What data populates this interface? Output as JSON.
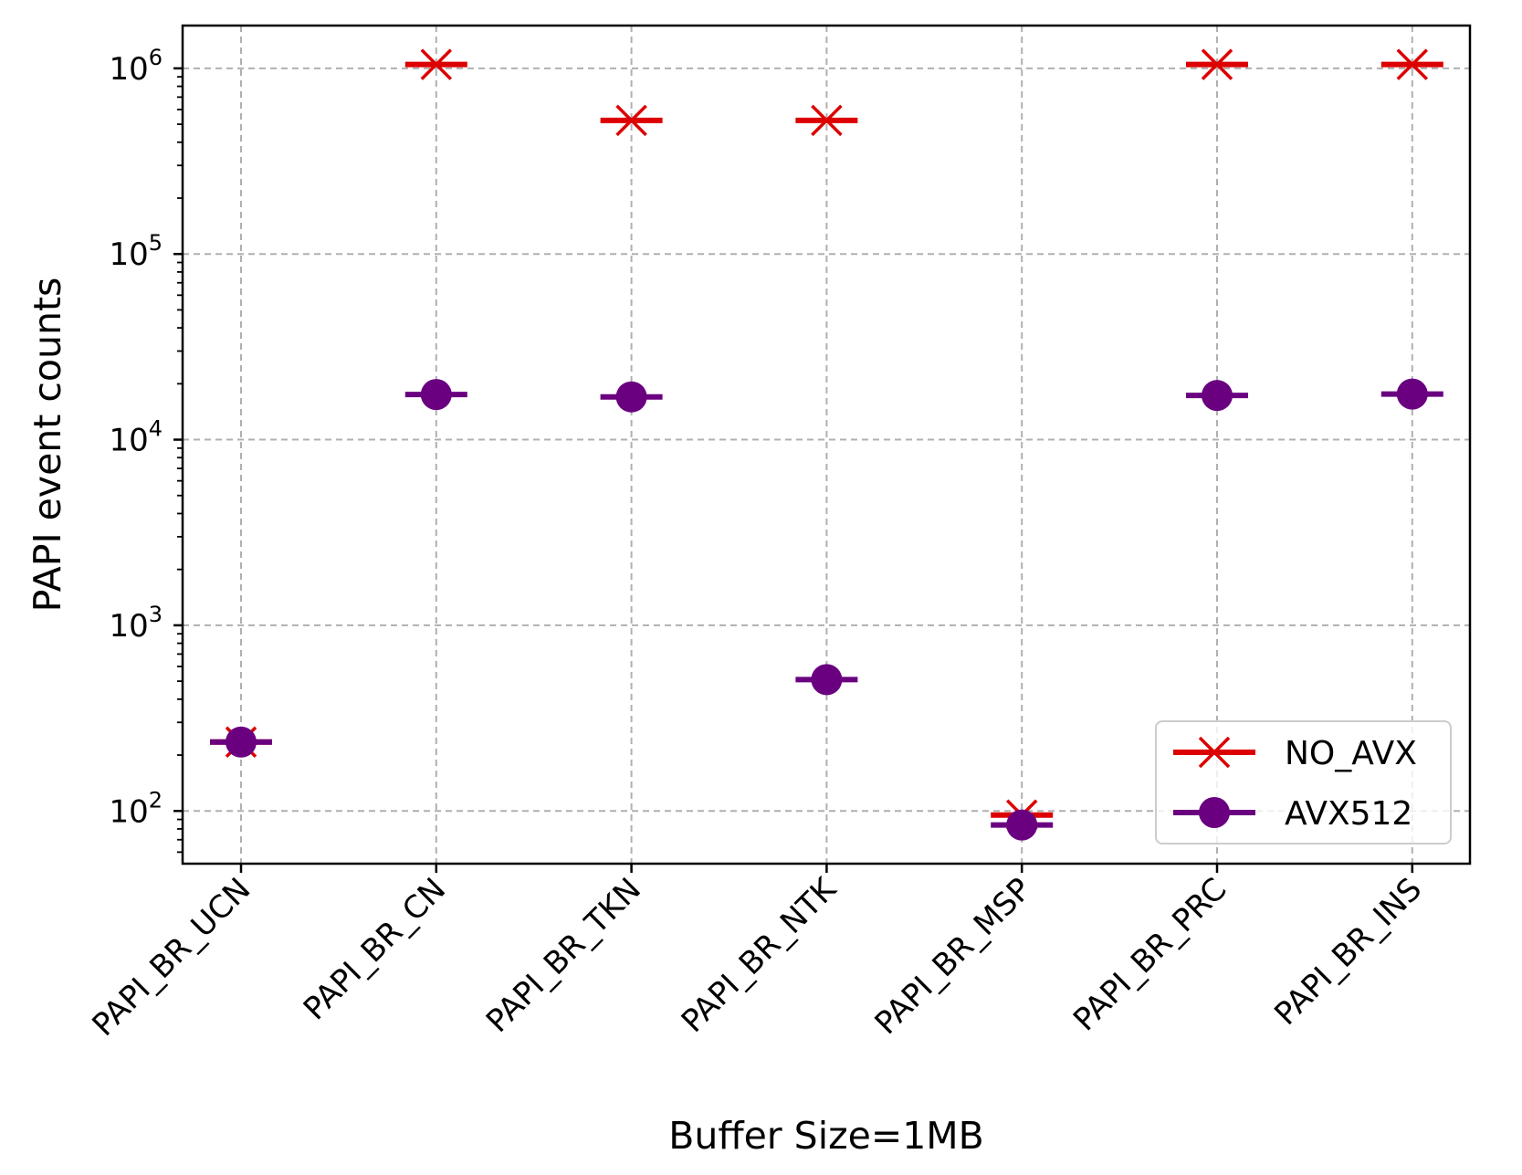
{
  "chart_data": {
    "type": "scatter",
    "title": "",
    "xlabel": "Buffer Size=1MB",
    "ylabel": "PAPI event counts",
    "yscale": "log",
    "ylim": [
      52,
      1700000
    ],
    "ytick_values": [
      100,
      1000,
      10000,
      100000,
      1000000
    ],
    "ytick_labels": [
      {
        "base": "10",
        "exp": "2"
      },
      {
        "base": "10",
        "exp": "3"
      },
      {
        "base": "10",
        "exp": "4"
      },
      {
        "base": "10",
        "exp": "5"
      },
      {
        "base": "10",
        "exp": "6"
      }
    ],
    "categories": [
      "PAPI_BR_UCN",
      "PAPI_BR_CN",
      "PAPI_BR_TKN",
      "PAPI_BR_NTK",
      "PAPI_BR_MSP",
      "PAPI_BR_PRC",
      "PAPI_BR_INS"
    ],
    "grid": true,
    "legend_position": "lower-right",
    "series": [
      {
        "name": "NO_AVX",
        "marker": "x",
        "color": "#dd0000",
        "values": [
          235,
          1048576,
          524288,
          524288,
          95,
          1048576,
          1048576
        ]
      },
      {
        "name": "AVX512",
        "marker": "circle",
        "color": "#6a0080",
        "values": [
          235,
          17500,
          17000,
          510,
          84,
          17300,
          17600
        ]
      }
    ]
  }
}
